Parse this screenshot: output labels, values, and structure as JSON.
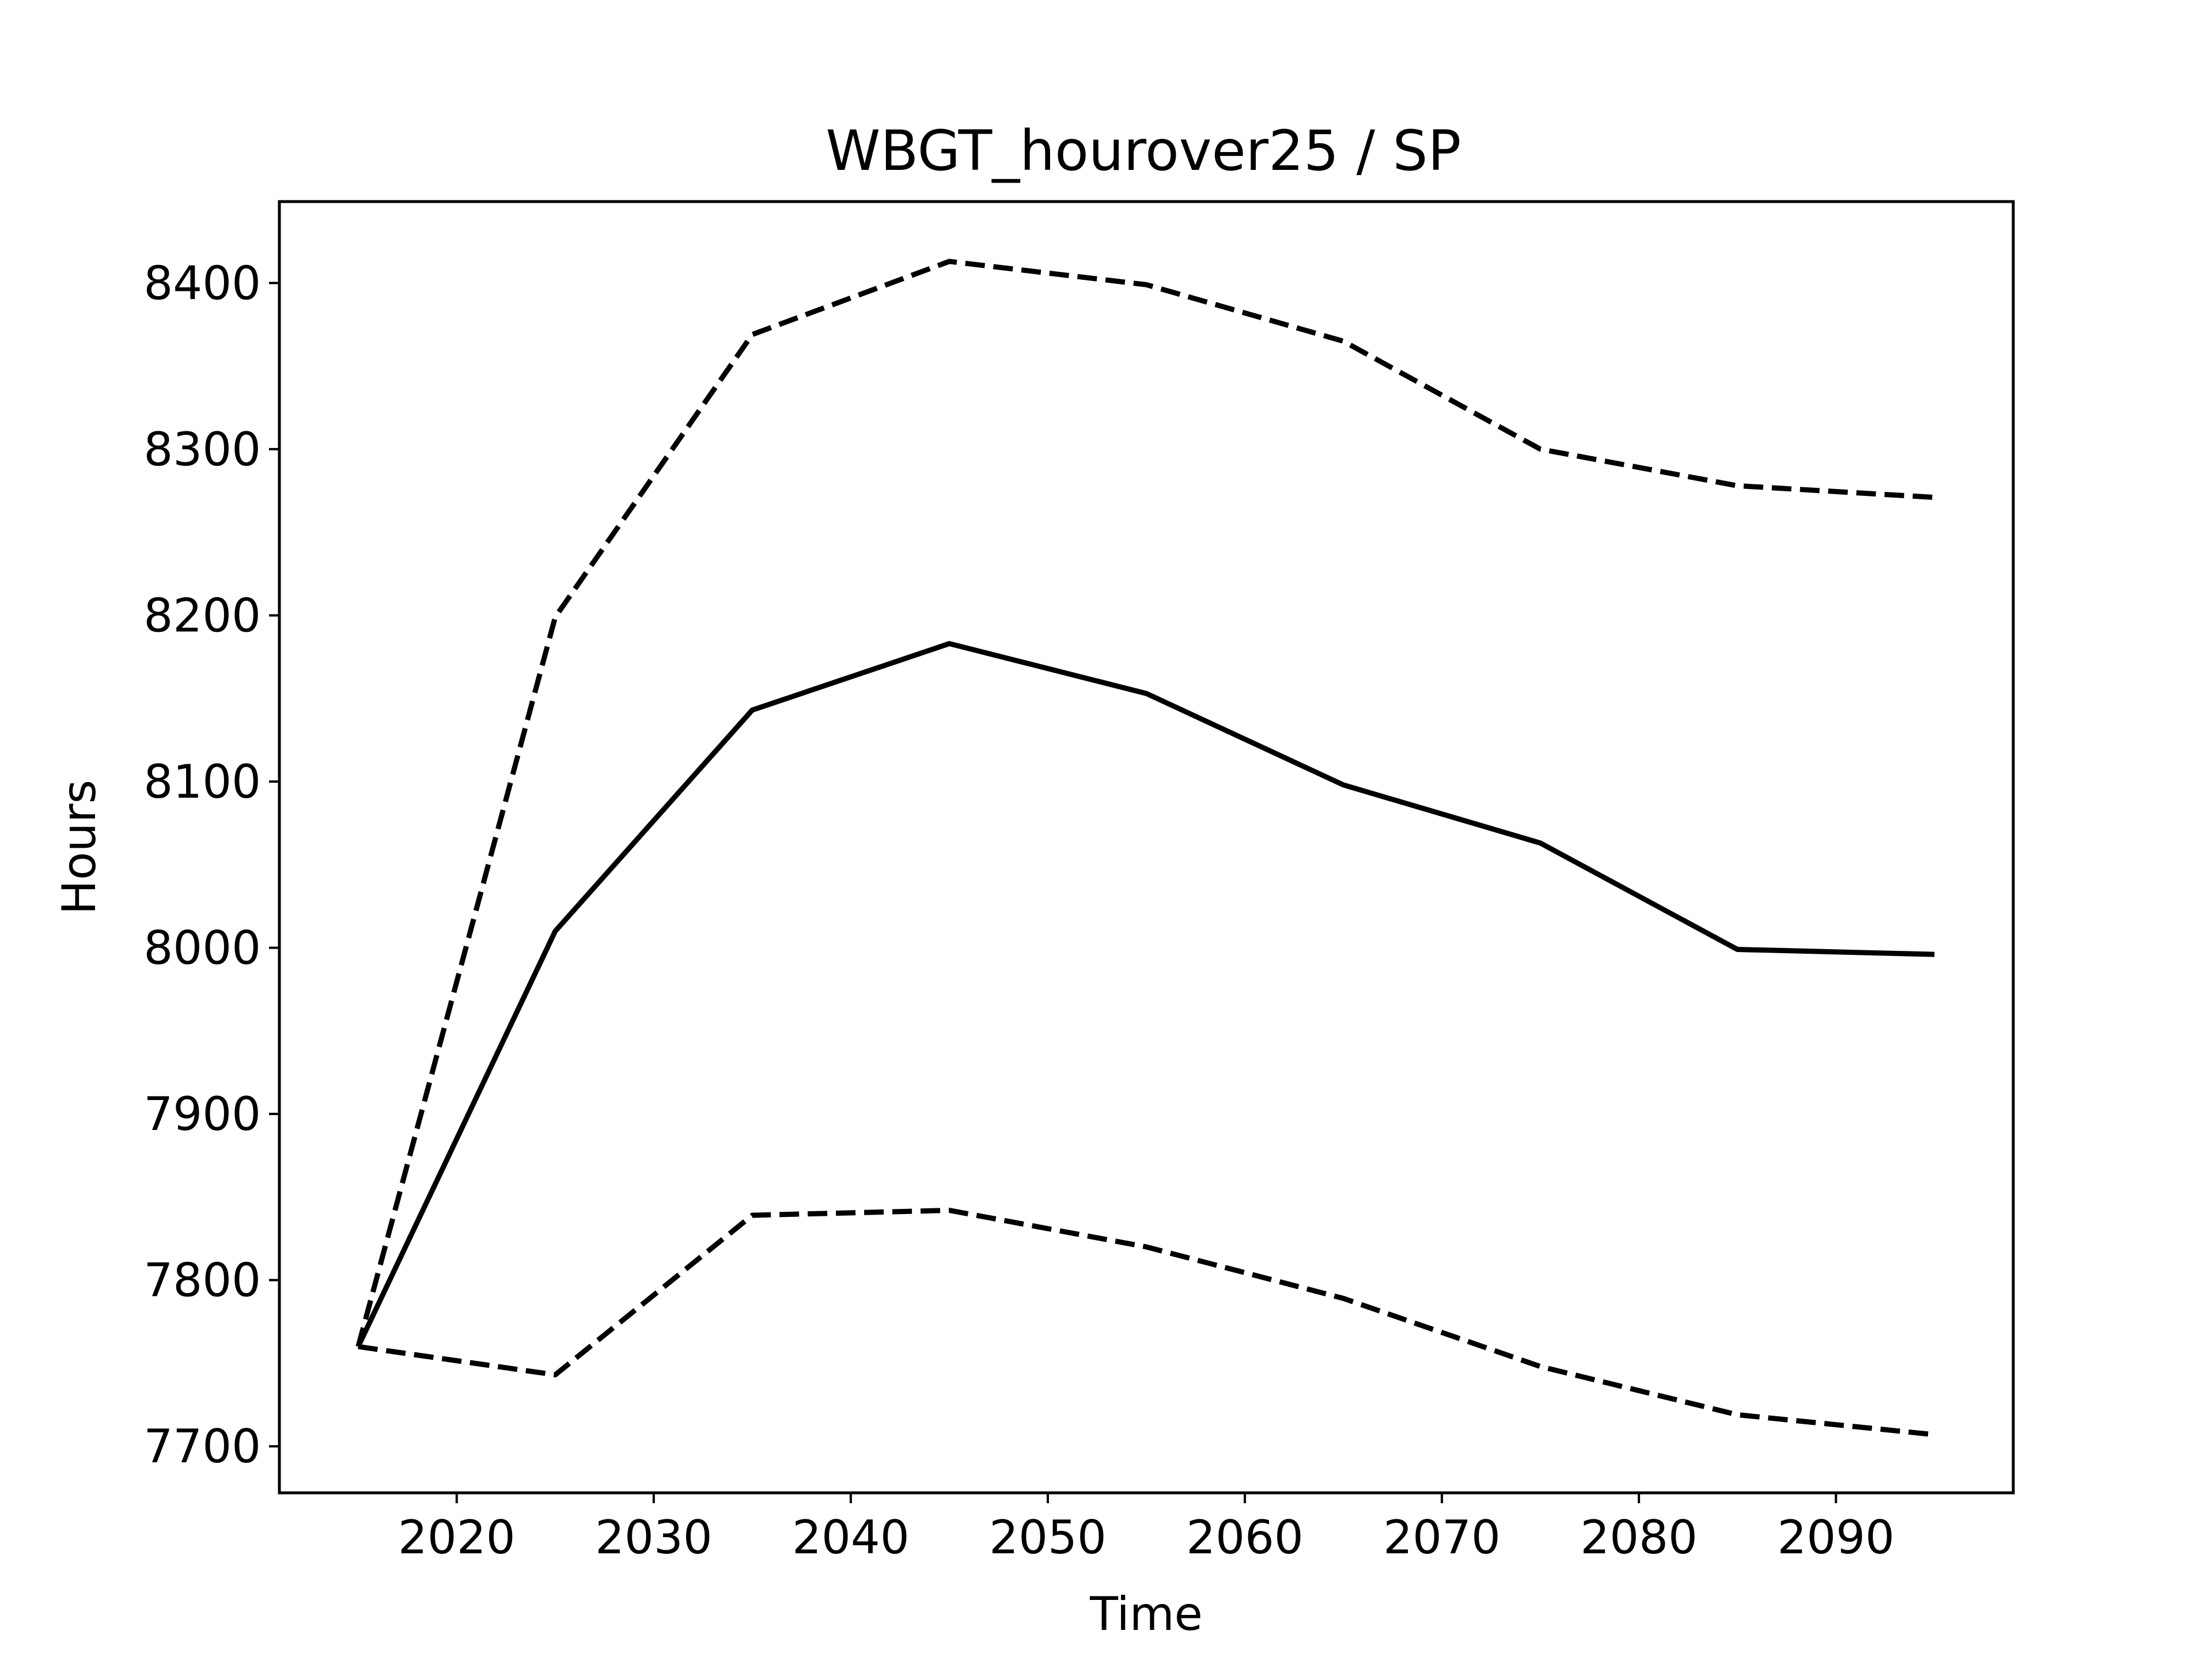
{
  "chart_data": {
    "type": "line",
    "title": "WBGT_hourover25 / SP",
    "xlabel": "Time",
    "ylabel": "Hours",
    "xlim": [
      2011,
      2099
    ],
    "ylim": [
      7672,
      8449
    ],
    "xticks": [
      2020,
      2030,
      2040,
      2050,
      2060,
      2070,
      2080,
      2090
    ],
    "yticks": [
      7700,
      7800,
      7900,
      8000,
      8100,
      8200,
      8300,
      8400
    ],
    "grid": false,
    "x": [
      2015,
      2025,
      2035,
      2045,
      2055,
      2065,
      2075,
      2085,
      2095
    ],
    "series": [
      {
        "style": "solid",
        "values": [
          7760,
          8010,
          8143,
          8183,
          8153,
          8098,
          8063,
          7999,
          7996
        ]
      },
      {
        "style": "dashed",
        "values": [
          7760,
          8199,
          8369,
          8413,
          8399,
          8365,
          8300,
          8278,
          8271
        ]
      },
      {
        "style": "dashed",
        "values": [
          7760,
          7743,
          7839,
          7842,
          7820,
          7789,
          7748,
          7719,
          7707
        ]
      }
    ],
    "line_color": "#000000"
  }
}
